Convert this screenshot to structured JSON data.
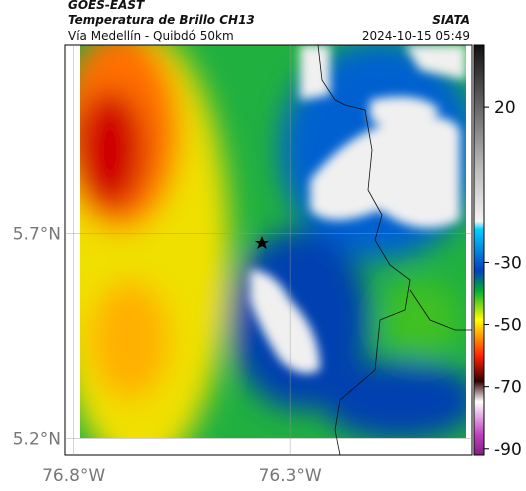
{
  "header": {
    "satellite": "GOES-EAST",
    "product": "Temperatura de Brillo CH13",
    "region": "Vía Medellín - Quibdó 50km",
    "source": "SIATA",
    "datetime": "2024-10-15 05:49"
  },
  "map": {
    "xlim": [
      -76.82,
      -75.88
    ],
    "ylim": [
      5.16,
      6.16
    ],
    "xticks": [
      {
        "value": -76.8,
        "label": "76.8°W"
      },
      {
        "value": -76.3,
        "label": "76.3°W"
      }
    ],
    "yticks": [
      {
        "value": 5.7,
        "label": "5.7°N"
      },
      {
        "value": 5.2,
        "label": "5.2°N"
      }
    ],
    "colorbar": {
      "lim": [
        -92,
        40
      ],
      "ticks": [
        20,
        -30,
        -50,
        -70,
        -90
      ]
    }
  }
}
